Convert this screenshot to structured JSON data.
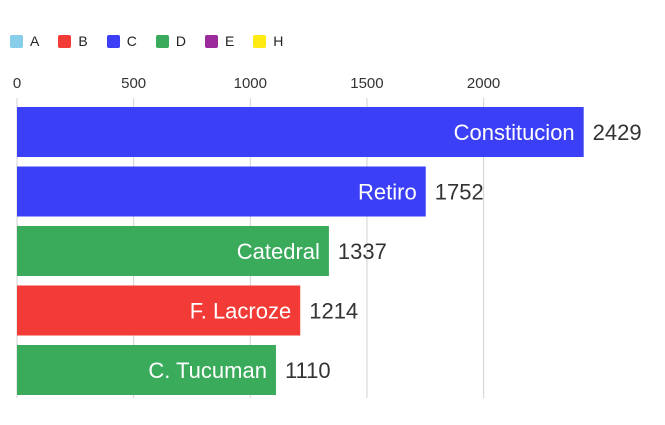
{
  "legend": [
    {
      "label": "A",
      "color": "#87ceeb"
    },
    {
      "label": "B",
      "color": "#f23a36"
    },
    {
      "label": "C",
      "color": "#3b3ff5"
    },
    {
      "label": "D",
      "color": "#3aaa5b"
    },
    {
      "label": "E",
      "color": "#9b2a9b"
    },
    {
      "label": "H",
      "color": "#ffeb14"
    }
  ],
  "chart_data": {
    "type": "bar",
    "orientation": "horizontal",
    "categories": [
      "Constitucion",
      "Retiro",
      "Catedral",
      "F. Lacroze",
      "C. Tucuman"
    ],
    "values": [
      2429,
      1752,
      1337,
      1214,
      1110
    ],
    "value_labels": [
      "2429",
      "1752",
      "1337",
      "1214",
      "1110"
    ],
    "groups": [
      "C",
      "C",
      "D",
      "B",
      "D"
    ],
    "colors": [
      "#3b3ff5",
      "#3b3ff5",
      "#3aaa5b",
      "#f23a36",
      "#3aaa5b"
    ],
    "xticks": [
      0,
      500,
      1000,
      1500,
      2000
    ],
    "xtick_labels": [
      "0",
      "500",
      "1000",
      "1500",
      "2000"
    ],
    "xlim": [
      0,
      2600
    ],
    "grid": true,
    "legend_position": "top-left",
    "title": "",
    "xlabel": "",
    "ylabel": ""
  }
}
